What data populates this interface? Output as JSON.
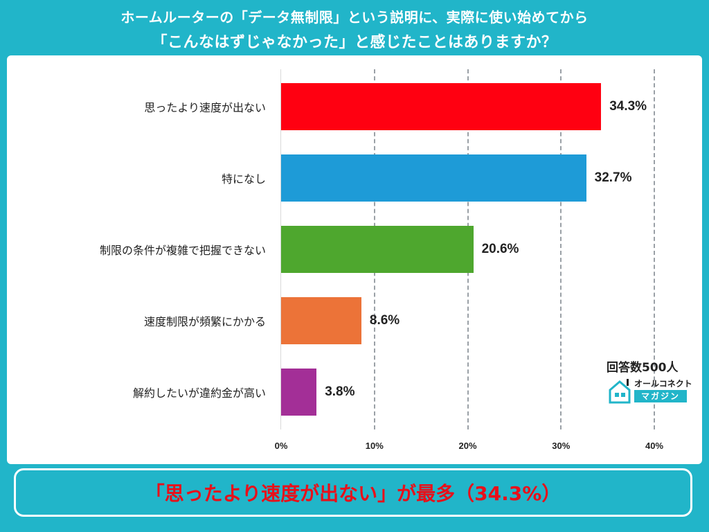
{
  "header": {
    "line1": "ホームルーターの「データ無制限」という説明に、実際に使い始めてから",
    "line2": "「こんなはずじゃなかった」と感じたことはありますか？"
  },
  "chart_data": {
    "type": "bar",
    "orientation": "horizontal",
    "categories": [
      "思ったより速度が出ない",
      "特になし",
      "制限の条件が複雑で把握できない",
      "速度制限が頻繁にかかる",
      "解約したいが違約金が高い"
    ],
    "values": [
      34.3,
      32.7,
      20.6,
      8.6,
      3.8
    ],
    "value_labels": [
      "34.3%",
      "32.7%",
      "20.6%",
      "8.6%",
      "3.8%"
    ],
    "colors": [
      "#ff0011",
      "#1e9bd7",
      "#4ea72e",
      "#ec7338",
      "#a32f97"
    ],
    "xlim": [
      0,
      40
    ],
    "xticks": [
      "0%",
      "10%",
      "20%",
      "30%",
      "40%"
    ],
    "grid": true
  },
  "respondents": "回答数500人",
  "logo": {
    "top": "オールコネクト",
    "bottom": "マガジン",
    "icon": "house-icon"
  },
  "summary": "「思ったより速度が出ない」が最多（34.3%）"
}
